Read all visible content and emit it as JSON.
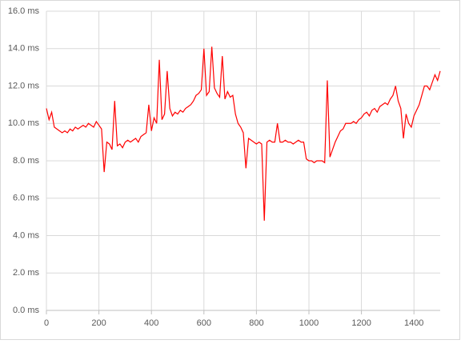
{
  "chart_data": {
    "type": "line",
    "x": [
      0,
      10,
      20,
      30,
      40,
      50,
      60,
      70,
      80,
      90,
      100,
      110,
      120,
      130,
      140,
      150,
      160,
      170,
      180,
      190,
      200,
      210,
      220,
      230,
      240,
      250,
      260,
      270,
      280,
      290,
      300,
      310,
      320,
      330,
      340,
      350,
      360,
      370,
      380,
      390,
      400,
      410,
      420,
      430,
      440,
      450,
      460,
      470,
      480,
      490,
      500,
      510,
      520,
      530,
      540,
      550,
      560,
      570,
      580,
      590,
      600,
      610,
      620,
      630,
      640,
      650,
      660,
      670,
      680,
      690,
      700,
      710,
      720,
      730,
      740,
      750,
      760,
      770,
      780,
      790,
      800,
      810,
      820,
      830,
      840,
      850,
      860,
      870,
      880,
      890,
      900,
      910,
      920,
      930,
      940,
      950,
      960,
      970,
      980,
      990,
      1000,
      1010,
      1020,
      1030,
      1040,
      1050,
      1060,
      1070,
      1080,
      1090,
      1100,
      1110,
      1120,
      1130,
      1140,
      1150,
      1160,
      1170,
      1180,
      1190,
      1200,
      1210,
      1220,
      1230,
      1240,
      1250,
      1260,
      1270,
      1280,
      1290,
      1300,
      1310,
      1320,
      1330,
      1340,
      1350,
      1360,
      1370,
      1380,
      1390,
      1400,
      1410,
      1420,
      1430,
      1440,
      1450,
      1460,
      1470,
      1480,
      1490,
      1500
    ],
    "series": [
      {
        "color": "#ff0000",
        "values": [
          10.8,
          10.2,
          10.6,
          9.8,
          9.7,
          9.6,
          9.5,
          9.6,
          9.5,
          9.7,
          9.6,
          9.8,
          9.7,
          9.8,
          9.9,
          9.8,
          10.0,
          9.9,
          9.8,
          10.1,
          9.9,
          9.7,
          7.4,
          9.0,
          8.9,
          8.6,
          11.2,
          8.8,
          8.9,
          8.7,
          9.0,
          9.1,
          9.0,
          9.1,
          9.2,
          9.0,
          9.3,
          9.4,
          9.5,
          11.0,
          9.6,
          10.3,
          10.0,
          13.4,
          10.2,
          10.5,
          12.8,
          10.8,
          10.4,
          10.6,
          10.5,
          10.7,
          10.6,
          10.8,
          10.9,
          11.0,
          11.2,
          11.5,
          11.6,
          11.8,
          14.0,
          11.5,
          11.7,
          14.1,
          11.9,
          11.6,
          11.4,
          13.6,
          11.3,
          11.7,
          11.4,
          11.5,
          10.5,
          10.0,
          9.8,
          9.5,
          7.6,
          9.2,
          9.1,
          9.0,
          8.9,
          9.0,
          8.9,
          4.8,
          9.0,
          9.1,
          9.0,
          9.0,
          10.0,
          9.0,
          9.0,
          9.1,
          9.0,
          9.0,
          8.9,
          9.0,
          9.1,
          9.0,
          9.0,
          8.1,
          8.0,
          8.0,
          7.9,
          8.0,
          8.0,
          8.0,
          7.9,
          12.3,
          8.2,
          8.6,
          9.0,
          9.3,
          9.6,
          9.7,
          10.0,
          10.0,
          10.0,
          10.1,
          10.0,
          10.2,
          10.3,
          10.5,
          10.6,
          10.4,
          10.7,
          10.8,
          10.6,
          10.9,
          11.0,
          11.1,
          11.0,
          11.3,
          11.5,
          12.0,
          11.2,
          10.8,
          9.2,
          10.5,
          10.0,
          9.8,
          10.4,
          10.7,
          11.0,
          11.5,
          12.0,
          12.0,
          11.8,
          12.2,
          12.6,
          12.3,
          12.8
        ]
      }
    ],
    "xlim": [
      0,
      1500
    ],
    "xticks": [
      0,
      200,
      400,
      600,
      800,
      1000,
      1200,
      1400
    ],
    "ylim": [
      0,
      16
    ],
    "yticks": [
      {
        "value": 0,
        "label": "0.0 ms"
      },
      {
        "value": 2,
        "label": "2.0 ms"
      },
      {
        "value": 4,
        "label": "4.0 ms"
      },
      {
        "value": 6,
        "label": "6.0 ms"
      },
      {
        "value": 8,
        "label": "8.0 ms"
      },
      {
        "value": 10,
        "label": "10.0 ms"
      },
      {
        "value": 12,
        "label": "12.0 ms"
      },
      {
        "value": 14,
        "label": "14.0 ms"
      },
      {
        "value": 16,
        "label": "16.0 ms"
      }
    ],
    "grid": true
  }
}
